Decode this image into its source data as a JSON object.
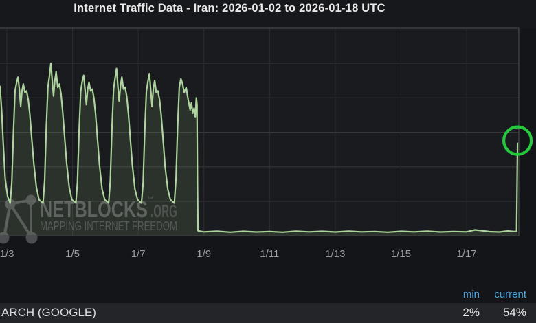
{
  "page": {
    "title": "Internet Traffic Data - Iran: 2026-01-02 to 2026-01-18 UTC"
  },
  "watermark": {
    "brand": "NETBLOCKS",
    "tm": "™",
    "domain": ".ORG",
    "tagline": "MAPPING INTERNET FREEDOM",
    "icon": "network-nodes-icon"
  },
  "legend": {
    "columns": {
      "min": "min",
      "current": "current"
    },
    "row": {
      "label": "ARCH (GOOGLE)",
      "min": "2%",
      "current": "54%"
    }
  },
  "colors": {
    "line": "#aed49d",
    "fill": "rgba(160,200,130,0.13)",
    "annotation_green": "#26c83e",
    "accent_blue": "#47a4e4",
    "grid_h": "#35373b",
    "grid_v": "#2b2d31",
    "border": "#3d3f43",
    "plot_bg": "#1a1b1e",
    "tick_text": "#9b9ea1"
  },
  "chart_data": {
    "type": "area",
    "title": "Internet Traffic Data - Iran: 2026-01-02 to 2026-01-18 UTC",
    "series_name": "ARCH (GOOGLE)",
    "x_axis": {
      "unit": "days since 2026-01-02 00:00 UTC",
      "ticks": [
        {
          "t": 1,
          "label": "1/3"
        },
        {
          "t": 3,
          "label": "1/5"
        },
        {
          "t": 5,
          "label": "1/7"
        },
        {
          "t": 7,
          "label": "1/9"
        },
        {
          "t": 9,
          "label": "1/11"
        },
        {
          "t": 11,
          "label": "1/13"
        },
        {
          "t": 13,
          "label": "1/15"
        },
        {
          "t": 15,
          "label": "1/17"
        }
      ]
    },
    "y_axis": {
      "unit": "percent of expected traffic",
      "min": 0,
      "max": 120,
      "gridline_pcts": [
        20,
        40,
        60,
        80,
        100
      ],
      "grid": true
    },
    "stats": {
      "min_pct": 2,
      "current_pct": 54
    },
    "annotation": {
      "shape": "circle",
      "t": 16.55,
      "pct": 54,
      "meaning": "final spike to current 54%"
    },
    "points": [
      [
        0.79,
        87
      ],
      [
        0.84,
        73
      ],
      [
        0.89,
        54
      ],
      [
        0.95,
        33
      ],
      [
        1.02,
        23
      ],
      [
        1.1,
        19
      ],
      [
        1.15,
        31
      ],
      [
        1.2,
        60
      ],
      [
        1.25,
        84
      ],
      [
        1.3,
        89
      ],
      [
        1.34,
        92
      ],
      [
        1.38,
        85
      ],
      [
        1.42,
        75
      ],
      [
        1.46,
        84
      ],
      [
        1.5,
        88
      ],
      [
        1.55,
        83
      ],
      [
        1.6,
        84
      ],
      [
        1.65,
        79
      ],
      [
        1.7,
        70
      ],
      [
        1.76,
        56
      ],
      [
        1.82,
        42
      ],
      [
        1.9,
        28
      ],
      [
        1.98,
        21
      ],
      [
        2.1,
        19
      ],
      [
        2.15,
        32
      ],
      [
        2.2,
        62
      ],
      [
        2.25,
        86
      ],
      [
        2.3,
        93
      ],
      [
        2.34,
        100
      ],
      [
        2.38,
        90
      ],
      [
        2.42,
        81
      ],
      [
        2.46,
        90
      ],
      [
        2.5,
        95
      ],
      [
        2.55,
        86
      ],
      [
        2.6,
        88
      ],
      [
        2.65,
        82
      ],
      [
        2.7,
        72
      ],
      [
        2.76,
        57
      ],
      [
        2.82,
        42
      ],
      [
        2.9,
        28
      ],
      [
        2.98,
        21
      ],
      [
        3.1,
        19
      ],
      [
        3.15,
        31
      ],
      [
        3.2,
        61
      ],
      [
        3.25,
        84
      ],
      [
        3.3,
        90
      ],
      [
        3.34,
        93
      ],
      [
        3.38,
        85
      ],
      [
        3.42,
        76
      ],
      [
        3.46,
        85
      ],
      [
        3.5,
        89
      ],
      [
        3.55,
        84
      ],
      [
        3.6,
        85
      ],
      [
        3.65,
        80
      ],
      [
        3.7,
        71
      ],
      [
        3.76,
        56
      ],
      [
        3.82,
        41
      ],
      [
        3.9,
        27
      ],
      [
        3.98,
        21
      ],
      [
        4.1,
        19
      ],
      [
        4.15,
        32
      ],
      [
        4.2,
        62
      ],
      [
        4.25,
        85
      ],
      [
        4.3,
        92
      ],
      [
        4.34,
        97
      ],
      [
        4.38,
        87
      ],
      [
        4.42,
        78
      ],
      [
        4.46,
        87
      ],
      [
        4.5,
        92
      ],
      [
        4.55,
        85
      ],
      [
        4.6,
        86
      ],
      [
        4.65,
        81
      ],
      [
        4.7,
        71
      ],
      [
        4.76,
        56
      ],
      [
        4.82,
        41
      ],
      [
        4.9,
        27
      ],
      [
        4.98,
        21
      ],
      [
        5.1,
        19
      ],
      [
        5.15,
        31
      ],
      [
        5.2,
        61
      ],
      [
        5.25,
        84
      ],
      [
        5.3,
        90
      ],
      [
        5.34,
        94
      ],
      [
        5.38,
        85
      ],
      [
        5.42,
        75
      ],
      [
        5.46,
        85
      ],
      [
        5.5,
        90
      ],
      [
        5.55,
        83
      ],
      [
        5.6,
        84
      ],
      [
        5.65,
        79
      ],
      [
        5.7,
        70
      ],
      [
        5.76,
        55
      ],
      [
        5.82,
        40
      ],
      [
        5.9,
        27
      ],
      [
        5.98,
        21
      ],
      [
        6.1,
        19
      ],
      [
        6.15,
        33
      ],
      [
        6.2,
        63
      ],
      [
        6.25,
        86
      ],
      [
        6.3,
        91
      ],
      [
        6.35,
        88
      ],
      [
        6.4,
        83
      ],
      [
        6.46,
        86
      ],
      [
        6.52,
        79
      ],
      [
        6.58,
        73
      ],
      [
        6.62,
        77
      ],
      [
        6.66,
        71
      ],
      [
        6.7,
        74
      ],
      [
        6.74,
        69
      ],
      [
        6.77,
        80
      ],
      [
        6.79,
        76
      ],
      [
        6.805,
        30
      ],
      [
        6.82,
        3
      ],
      [
        7.0,
        2.4
      ],
      [
        7.4,
        2.8
      ],
      [
        7.8,
        2.2
      ],
      [
        8.2,
        2.7
      ],
      [
        8.6,
        2.3
      ],
      [
        9.0,
        2.6
      ],
      [
        9.4,
        2.2
      ],
      [
        9.8,
        2.8
      ],
      [
        10.2,
        2.4
      ],
      [
        10.6,
        2.7
      ],
      [
        11.0,
        2.3
      ],
      [
        11.4,
        2.8
      ],
      [
        11.8,
        2.4
      ],
      [
        12.2,
        2.6
      ],
      [
        12.6,
        2.2
      ],
      [
        13.0,
        2.7
      ],
      [
        13.4,
        2.4
      ],
      [
        13.8,
        2.8
      ],
      [
        14.2,
        2.3
      ],
      [
        14.6,
        2.6
      ],
      [
        15.0,
        2.4
      ],
      [
        15.25,
        3.5
      ],
      [
        15.45,
        3.1
      ],
      [
        15.7,
        2.5
      ],
      [
        16.0,
        2.3
      ],
      [
        16.25,
        2.9
      ],
      [
        16.45,
        2.6
      ],
      [
        16.52,
        2.8
      ],
      [
        16.55,
        54
      ]
    ]
  }
}
